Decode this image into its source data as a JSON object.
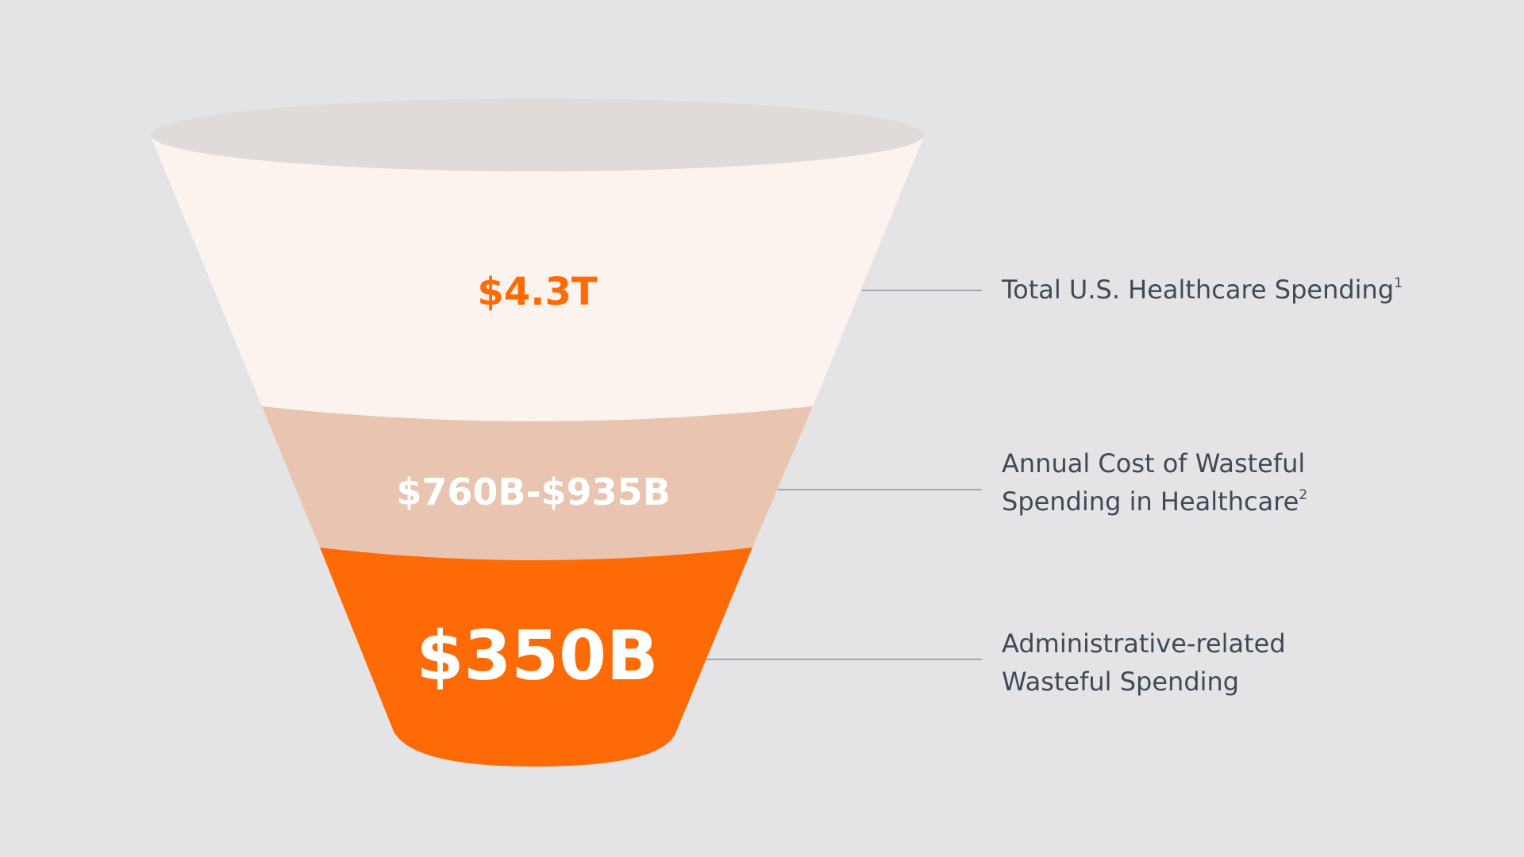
{
  "funnel": {
    "colors": {
      "background": "#e4e4e6",
      "rim": "#e0dbd8",
      "stage1": "#fcf3ee",
      "stage2": "#e9c4b0",
      "stage3": "#fe6b06",
      "value1_text": "#fe6b06",
      "value2_text": "#ffffff",
      "value3_text": "#ffffff",
      "label_text": "#3f4a56",
      "leader_line": "#8a949e"
    },
    "stages": [
      {
        "value": "$4.3T",
        "label_lines": [
          "Total U.S. Healthcare Spending"
        ],
        "footnote": "1"
      },
      {
        "value": "$760B-$935B",
        "label_lines": [
          "Annual Cost of Wasteful",
          "Spending in Healthcare"
        ],
        "footnote": "2"
      },
      {
        "value": "$350B",
        "label_lines": [
          "Administrative-related",
          "Wasteful Spending"
        ],
        "footnote": ""
      }
    ]
  }
}
